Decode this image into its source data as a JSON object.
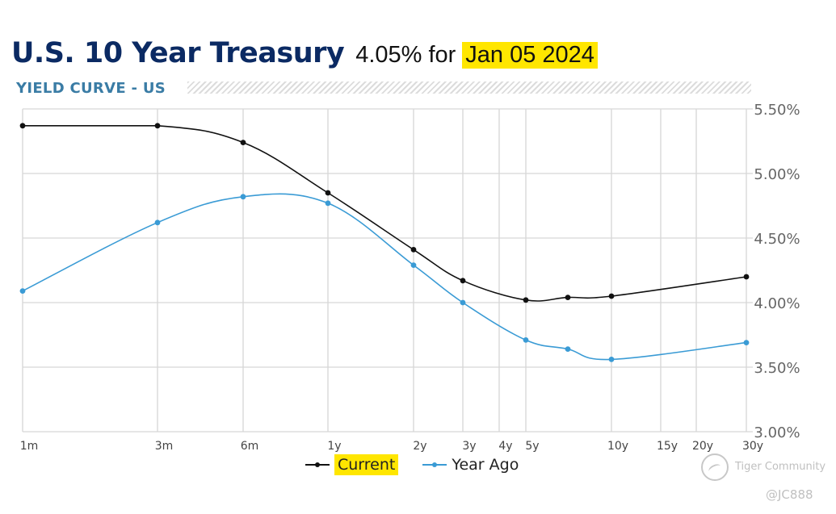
{
  "header": {
    "title": "U.S. 10 Year Treasury",
    "rate": "4.05%",
    "for_word": "for",
    "date": "Jan 05 2024",
    "subtitle": "YIELD CURVE - US"
  },
  "chart_data": {
    "type": "line",
    "ylim": [
      3.0,
      5.5
    ],
    "y_ticks": [
      "5.50%",
      "5.00%",
      "4.50%",
      "4.00%",
      "3.50%",
      "3.00%"
    ],
    "y_tick_values": [
      5.5,
      5.0,
      4.5,
      4.0,
      3.5,
      3.0
    ],
    "x_ticks": [
      "1m",
      "3m",
      "6m",
      "1y",
      "2y",
      "3y",
      "4y",
      "5y",
      "10y",
      "15y",
      "20y",
      "30y"
    ],
    "grid": true,
    "legend_position": "bottom",
    "series": [
      {
        "name": "Current",
        "color": "#111111",
        "points": [
          {
            "x": "1m",
            "y": 5.37
          },
          {
            "x": "3m",
            "y": 5.37
          },
          {
            "x": "6m",
            "y": 5.24
          },
          {
            "x": "1y",
            "y": 4.85
          },
          {
            "x": "2y",
            "y": 4.41
          },
          {
            "x": "3y",
            "y": 4.17
          },
          {
            "x": "5y",
            "y": 4.02
          },
          {
            "x": "7y",
            "y": 4.04
          },
          {
            "x": "10y",
            "y": 4.05
          },
          {
            "x": "30y",
            "y": 4.2
          }
        ]
      },
      {
        "name": "Year Ago",
        "color": "#3a9bd5",
        "points": [
          {
            "x": "1m",
            "y": 4.09
          },
          {
            "x": "3m",
            "y": 4.62
          },
          {
            "x": "6m",
            "y": 4.82
          },
          {
            "x": "1y",
            "y": 4.77
          },
          {
            "x": "2y",
            "y": 4.29
          },
          {
            "x": "3y",
            "y": 4.0
          },
          {
            "x": "5y",
            "y": 3.71
          },
          {
            "x": "7y",
            "y": 3.64
          },
          {
            "x": "10y",
            "y": 3.56
          },
          {
            "x": "30y",
            "y": 3.69
          }
        ]
      }
    ]
  },
  "watermark": {
    "brand": "Tiger Community",
    "handle": "@JC888"
  }
}
